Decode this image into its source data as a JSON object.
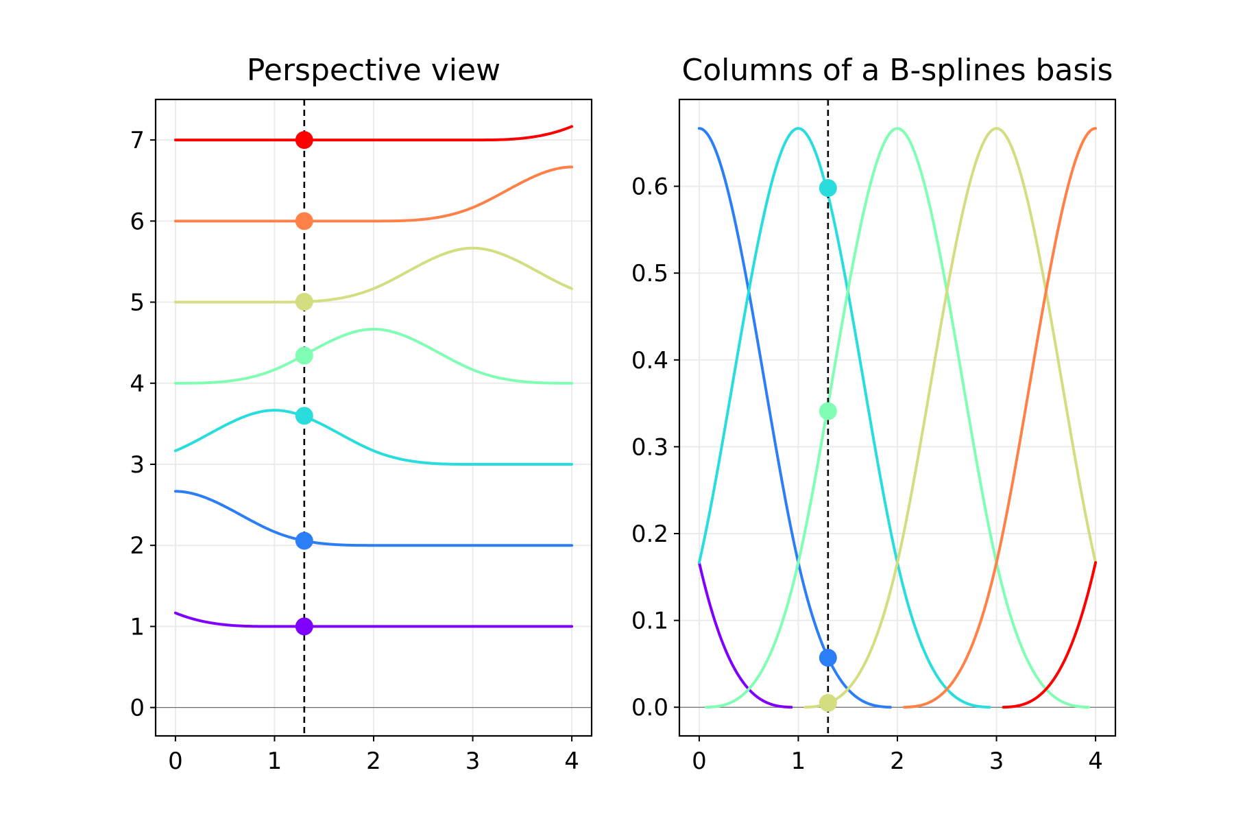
{
  "chart_data": [
    {
      "type": "line",
      "title": "Perspective view",
      "xlim": [
        -0.2,
        4.2
      ],
      "ylim": [
        -0.35,
        7.5
      ],
      "xticks": [
        0,
        1,
        2,
        3,
        4
      ],
      "yticks": [
        0,
        1,
        2,
        3,
        4,
        5,
        6,
        7
      ],
      "grid": true,
      "vline_x": 1.3,
      "x": [
        0.0,
        0.5,
        1.0,
        1.3,
        1.5,
        2.0,
        2.5,
        3.0,
        3.5,
        4.0
      ],
      "series": [
        {
          "color": "#8000ff",
          "offset": 1,
          "y": [
            1.167,
            1.021,
            1.0,
            1.0,
            1.0,
            1.0,
            1.0,
            1.0,
            1.0,
            1.0
          ],
          "marker_y": 1.0
        },
        {
          "color": "#2c7ef7",
          "offset": 2,
          "y": [
            2.667,
            2.479,
            2.167,
            2.057,
            2.021,
            2.0,
            2.0,
            2.0,
            2.0,
            2.0
          ],
          "marker_y": 2.057
        },
        {
          "color": "#2adddd",
          "offset": 3,
          "y": [
            3.167,
            3.479,
            3.667,
            3.598,
            3.479,
            3.167,
            3.021,
            3.0,
            3.0,
            3.0
          ],
          "marker_y": 3.598
        },
        {
          "color": "#80ffb4",
          "offset": 4,
          "y": [
            4.0,
            4.021,
            4.167,
            4.341,
            4.479,
            4.667,
            4.479,
            4.167,
            4.021,
            4.0
          ],
          "marker_y": 4.341
        },
        {
          "color": "#d4dd80",
          "offset": 5,
          "y": [
            5.0,
            5.0,
            5.0,
            5.005,
            5.021,
            5.167,
            5.479,
            5.667,
            5.479,
            5.167
          ],
          "marker_y": 5.005
        },
        {
          "color": "#ff8147",
          "offset": 6,
          "y": [
            6.0,
            6.0,
            6.0,
            6.0,
            6.0,
            6.0,
            6.021,
            6.167,
            6.479,
            6.667
          ],
          "marker_y": 6.0
        },
        {
          "color": "#ff0000",
          "offset": 7,
          "y": [
            7.0,
            7.0,
            7.0,
            7.0,
            7.0,
            7.0,
            7.0,
            7.0,
            7.021,
            7.167
          ],
          "marker_y": 7.0
        }
      ]
    },
    {
      "type": "line",
      "title": "Columns of a B-splines basis",
      "xlim": [
        -0.2,
        4.2
      ],
      "ylim": [
        -0.033,
        0.7
      ],
      "xticks": [
        0,
        1,
        2,
        3,
        4
      ],
      "yticks": [
        0.0,
        0.1,
        0.2,
        0.3,
        0.4,
        0.5,
        0.6
      ],
      "ytick_labels": [
        "0.0",
        "0.1",
        "0.2",
        "0.3",
        "0.4",
        "0.5",
        "0.6"
      ],
      "grid": true,
      "vline_x": 1.3,
      "series": [
        {
          "color": "#8000ff",
          "support": [
            -1,
            1
          ],
          "draw_range": [
            0,
            0.93
          ],
          "marker": false
        },
        {
          "color": "#2c7ef7",
          "support": [
            -2,
            2
          ],
          "draw_range": [
            0,
            1.93
          ],
          "marker": true,
          "marker_y": 0.057
        },
        {
          "color": "#2adddd",
          "support": [
            -1,
            3
          ],
          "draw_range": [
            0,
            2.93
          ],
          "marker": true,
          "marker_y": 0.598
        },
        {
          "color": "#80ffb4",
          "support": [
            0,
            4
          ],
          "draw_range": [
            0.07,
            3.93
          ],
          "marker": true,
          "marker_y": 0.341
        },
        {
          "color": "#d4dd80",
          "support": [
            1,
            5
          ],
          "draw_range": [
            1.07,
            4
          ],
          "marker": true,
          "marker_y": 0.005
        },
        {
          "color": "#ff8147",
          "support": [
            2,
            6
          ],
          "draw_range": [
            2.07,
            4
          ],
          "marker": false
        },
        {
          "color": "#ff0000",
          "support": [
            3,
            7
          ],
          "draw_range": [
            3.07,
            4
          ],
          "marker": false
        }
      ]
    }
  ]
}
